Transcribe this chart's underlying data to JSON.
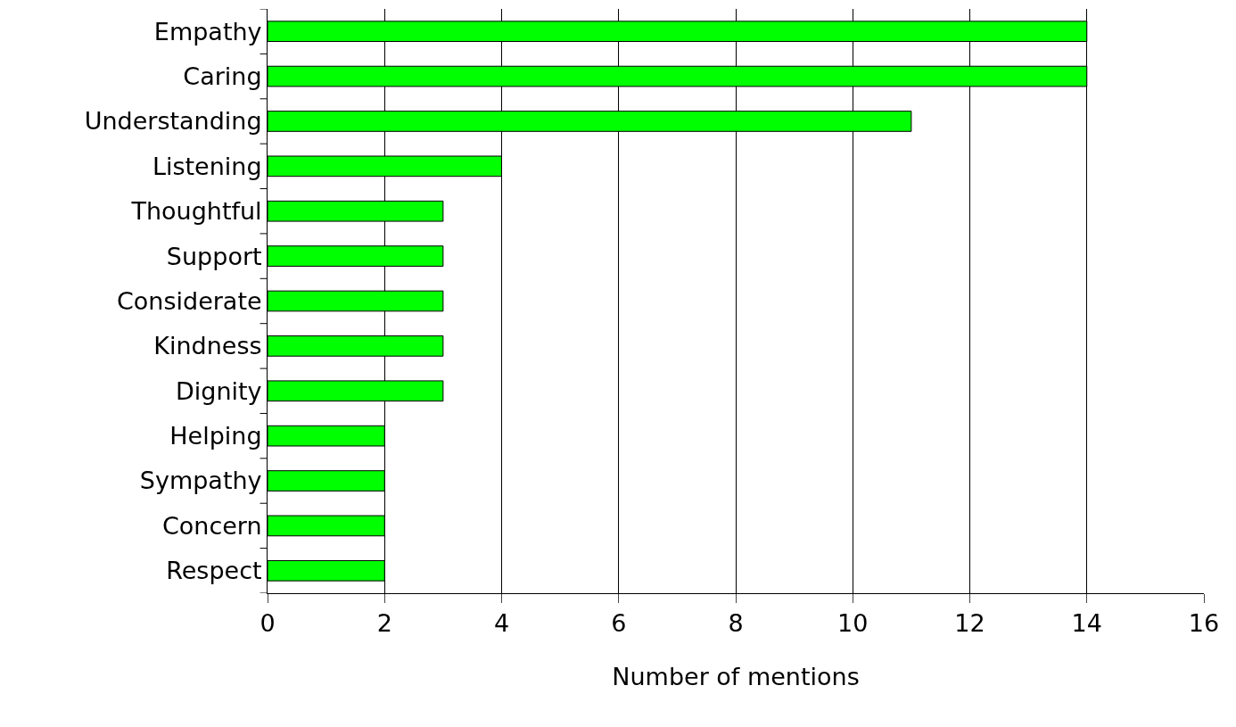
{
  "chart_data": {
    "type": "bar",
    "orientation": "horizontal",
    "xlabel": "Number of mentions",
    "categories": [
      "Empathy",
      "Caring",
      "Understanding",
      "Listening",
      "Thoughtful",
      "Support",
      "Considerate",
      "Kindness",
      "Dignity",
      "Helping",
      "Sympathy",
      "Concern",
      "Respect"
    ],
    "values": [
      14,
      14,
      11,
      4,
      3,
      3,
      3,
      3,
      3,
      2,
      2,
      2,
      2
    ],
    "color": "#00ff00",
    "xlim": [
      0,
      16
    ],
    "xticks": [
      0,
      2,
      4,
      6,
      8,
      10,
      12,
      14,
      16
    ],
    "grid": "x"
  }
}
